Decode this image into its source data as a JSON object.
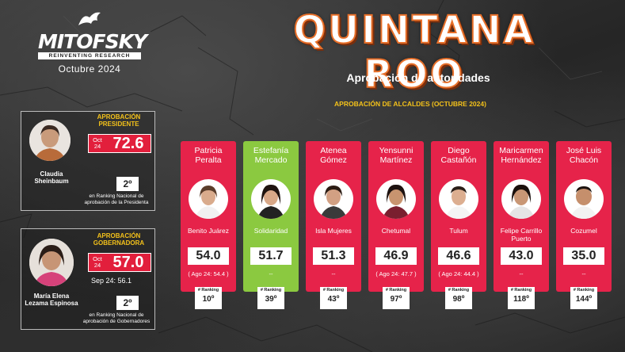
{
  "brand": {
    "name": "MITOFSKY",
    "tagline": "REINVENTING RESEARCH"
  },
  "date": "Octubre 2024",
  "title": "QUINTANA ROO",
  "subtitle": "Aprobación de autoridades",
  "section_title": "APROBACIÓN DE ALCALDES (OCTUBRE 2024)",
  "colors": {
    "card_red": "#e6234a",
    "card_green": "#8bc940",
    "label_yellow": "#f3c11a",
    "title_orange": "#e8702a"
  },
  "president": {
    "label": "APROBACIÓN PRESIDENTE",
    "month": "Oct 24",
    "score": "72.6",
    "name": "Claudia Sheinbaum",
    "rank": "2º",
    "rank_desc": "en Ranking Nacional de aprobación de la Presidenta"
  },
  "governor": {
    "label": "APROBACIÓN GOBERNADORA",
    "month": "Oct 24",
    "score": "57.0",
    "prev": "Sep 24:  56.1",
    "name": "María Elena Lezama Espinosa",
    "rank": "2º",
    "rank_desc": "en Ranking Nacional de aprobación de Gobernadores"
  },
  "ranking_label": "# Ranking",
  "mayors": [
    {
      "name": "Patricia Peralta",
      "city": "Benito Juárez",
      "score": "54.0",
      "prev": "( Ago 24: 54.4 )",
      "rank": "10º",
      "highlight": false
    },
    {
      "name": "Estefanía Mercado",
      "city": "Solidaridad",
      "score": "51.7",
      "prev": "--",
      "rank": "39º",
      "highlight": true
    },
    {
      "name": "Atenea Gómez",
      "city": "Isla Mujeres",
      "score": "51.3",
      "prev": "--",
      "rank": "43º",
      "highlight": false
    },
    {
      "name": "Yensunni Martínez",
      "city": "Chetumal",
      "score": "46.9",
      "prev": "( Ago 24: 47.7 )",
      "rank": "97º",
      "highlight": false
    },
    {
      "name": "Diego Castañón",
      "city": "Tulum",
      "score": "46.6",
      "prev": "( Ago 24: 44.4 )",
      "rank": "98º",
      "highlight": false
    },
    {
      "name": "Maricarmen Hernández",
      "city": "Felipe Carrillo Puerto",
      "score": "43.0",
      "prev": "--",
      "rank": "118º",
      "highlight": false
    },
    {
      "name": "José Luis Chacón",
      "city": "Cozumel",
      "score": "35.0",
      "prev": "--",
      "rank": "144º",
      "highlight": false
    }
  ]
}
